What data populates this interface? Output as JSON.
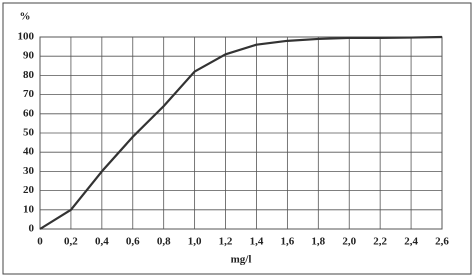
{
  "chart_data": {
    "type": "line",
    "x": [
      0,
      0.2,
      0.4,
      0.6,
      0.8,
      1.0,
      1.2,
      1.4,
      1.6,
      1.8,
      2.0,
      2.2,
      2.4,
      2.6
    ],
    "values": [
      0,
      10,
      30,
      48,
      64,
      82,
      91,
      96,
      98,
      99,
      99.5,
      99.5,
      99.7,
      100
    ],
    "color": "#333333",
    "ylabel": "%",
    "xlabel": "mg/l",
    "xlim": [
      0,
      2.6
    ],
    "ylim": [
      0,
      100
    ],
    "xticks": [
      0,
      {
        "value": 0.2,
        "label": "0,2"
      },
      {
        "value": 0.4,
        "label": "0,4"
      },
      {
        "value": 0.6,
        "label": "0,6"
      },
      {
        "value": 0.8,
        "label": "0,8"
      },
      {
        "value": 1.0,
        "label": "1,0"
      },
      {
        "value": 1.2,
        "label": "1,2"
      },
      {
        "value": 1.4,
        "label": "1,4"
      },
      {
        "value": 1.6,
        "label": "1,6"
      },
      {
        "value": 1.8,
        "label": "1,8"
      },
      {
        "value": 2.0,
        "label": "2,0"
      },
      {
        "value": 2.2,
        "label": "2,2"
      },
      {
        "value": 2.4,
        "label": "2,4"
      },
      {
        "value": 2.6,
        "label": "2,6"
      }
    ],
    "yticks": [
      0,
      10,
      20,
      30,
      40,
      50,
      60,
      70,
      80,
      90,
      100
    ],
    "grid": true
  }
}
